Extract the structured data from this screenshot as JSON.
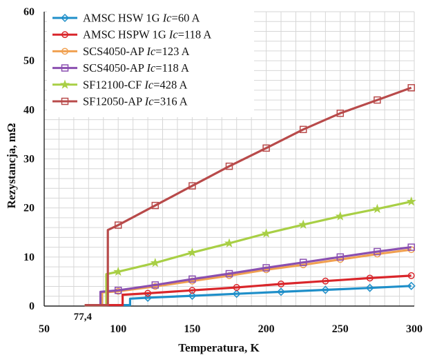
{
  "chart_data": {
    "type": "line",
    "xlabel": "Temperatura, K",
    "ylabel": "Rezystancja, mΩ",
    "xlim": [
      50,
      300
    ],
    "ylim": [
      0,
      60
    ],
    "xticks": [
      50,
      100,
      150,
      200,
      250,
      300
    ],
    "yticks": [
      0,
      10,
      20,
      30,
      40,
      50,
      60
    ],
    "grid": true,
    "legend_position": "top-left",
    "annotation": "77,4",
    "series": [
      {
        "label_a": "AMSC HSW 1G",
        "label_b": "Ic",
        "label_c": "=60 A",
        "color": "#1f8fc9",
        "marker": "diamond",
        "x": [
          77.4,
          108,
          108,
          120,
          150,
          180,
          210,
          240,
          270,
          298
        ],
        "y": [
          0.2,
          0.2,
          1.5,
          1.7,
          2.1,
          2.5,
          2.9,
          3.3,
          3.7,
          4.1
        ]
      },
      {
        "label_a": "AMSC HSPW 1G",
        "label_b": "Ic",
        "label_c": "=118 A",
        "color": "#d9262b",
        "marker": "circle",
        "x": [
          77.4,
          103,
          103,
          120,
          150,
          180,
          210,
          240,
          270,
          298
        ],
        "y": [
          0.2,
          0.2,
          2.3,
          2.6,
          3.2,
          3.8,
          4.5,
          5.1,
          5.7,
          6.2
        ]
      },
      {
        "label_a": "SCS4050-AP",
        "label_b": "Ic",
        "label_c": "=123 A",
        "color": "#f0a050",
        "marker": "circle",
        "x": [
          77.4,
          89,
          89,
          100,
          125,
          150,
          175,
          200,
          225,
          250,
          275,
          298
        ],
        "y": [
          0.2,
          0.2,
          2.8,
          3.0,
          4.0,
          5.1,
          6.2,
          7.4,
          8.4,
          9.5,
          10.6,
          11.5
        ]
      },
      {
        "label_a": "SCS4050-AP",
        "label_b": "Ic",
        "label_c": "=118 A",
        "color": "#8a4fb0",
        "marker": "square",
        "x": [
          77.4,
          88,
          88,
          100,
          125,
          150,
          175,
          200,
          225,
          250,
          275,
          298
        ],
        "y": [
          0.2,
          0.2,
          2.9,
          3.2,
          4.3,
          5.5,
          6.6,
          7.8,
          8.9,
          10.0,
          11.1,
          12.0
        ]
      },
      {
        "label_a": "SF12100-CF",
        "label_b": "Ic",
        "label_c": "=428 A",
        "color": "#a8cf45",
        "marker": "star",
        "x": [
          77.4,
          92,
          92,
          100,
          125,
          150,
          175,
          200,
          225,
          250,
          275,
          298
        ],
        "y": [
          0.2,
          0.2,
          6.5,
          7.0,
          8.8,
          10.9,
          12.8,
          14.8,
          16.6,
          18.3,
          19.8,
          21.3
        ]
      },
      {
        "label_a": "SF12050-AP",
        "label_b": "Ic",
        "label_c": "=316 A",
        "color": "#b84a4a",
        "marker": "square",
        "x": [
          77.4,
          93,
          93,
          100,
          125,
          150,
          175,
          200,
          225,
          250,
          275,
          298
        ],
        "y": [
          0.2,
          0.2,
          15.5,
          16.5,
          20.5,
          24.5,
          28.5,
          32.2,
          36.0,
          39.3,
          42.0,
          44.5
        ]
      }
    ]
  }
}
